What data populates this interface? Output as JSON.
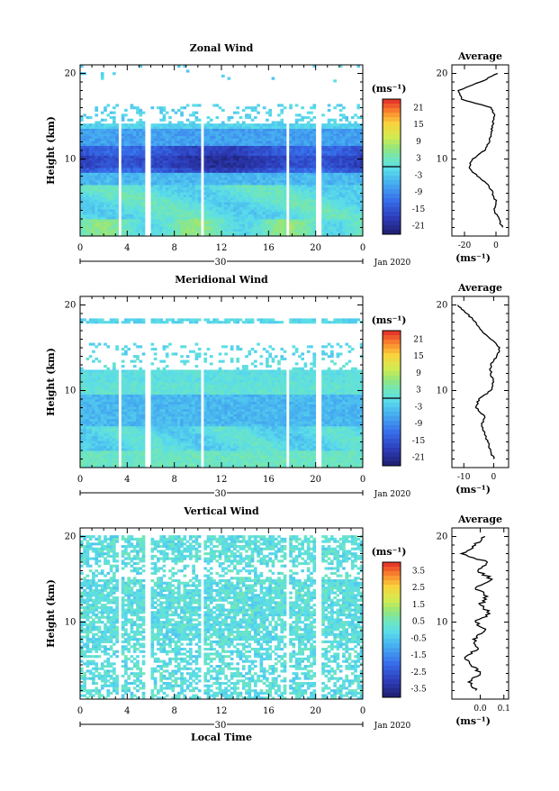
{
  "panels": [
    {
      "id": "zonal",
      "title": "Zonal Wind",
      "ylabel": "Height (km)",
      "yticks": [
        "20",
        "10"
      ],
      "xticks": [
        "0",
        "4",
        "8",
        "12",
        "16",
        "20",
        "0"
      ],
      "day_label": "30",
      "date_label": "Jan 2020",
      "unit_label": "(ms⁻¹)",
      "colorbar_ticks": [
        "21",
        "15",
        "9",
        "3",
        "-3",
        "-9",
        "-15",
        "-21"
      ],
      "colorbar_range": [
        -24,
        24
      ],
      "zero_marker": 0,
      "avg": {
        "title": "Average",
        "yticks": [
          "20",
          "10"
        ],
        "xticks": [
          "-20",
          "0"
        ],
        "xlim": [
          -28,
          8
        ],
        "unit": "(ms⁻¹)",
        "profile": [
          [
            2,
            4
          ],
          [
            3,
            2
          ],
          [
            4,
            -1
          ],
          [
            5,
            0
          ],
          [
            6,
            -2
          ],
          [
            7,
            -5
          ],
          [
            8,
            -12
          ],
          [
            9,
            -17
          ],
          [
            10,
            -15
          ],
          [
            11,
            -7
          ],
          [
            12,
            -4
          ],
          [
            13,
            -3
          ],
          [
            14,
            -2
          ],
          [
            15,
            -1
          ],
          [
            16,
            -3
          ],
          [
            17,
            -22
          ],
          [
            18,
            -24
          ],
          [
            19,
            -10
          ],
          [
            20,
            1
          ]
        ]
      }
    },
    {
      "id": "meridional",
      "title": "Meridional Wind",
      "ylabel": "Height (km)",
      "yticks": [
        "20",
        "10"
      ],
      "xticks": [
        "0",
        "4",
        "8",
        "12",
        "16",
        "20",
        "0"
      ],
      "day_label": "30",
      "date_label": "Jan 2020",
      "unit_label": "(ms⁻¹)",
      "colorbar_ticks": [
        "21",
        "15",
        "9",
        "3",
        "-3",
        "-9",
        "-15",
        "-21"
      ],
      "colorbar_range": [
        -24,
        24
      ],
      "zero_marker": 0,
      "avg": {
        "title": "Average",
        "yticks": [
          "20",
          "10"
        ],
        "xticks": [
          "-10",
          "0"
        ],
        "xlim": [
          -14,
          5
        ],
        "unit": "(ms⁻¹)",
        "profile": [
          [
            2,
            0
          ],
          [
            3,
            -1
          ],
          [
            4,
            -2
          ],
          [
            5,
            -3
          ],
          [
            6,
            -4
          ],
          [
            7,
            -3
          ],
          [
            8,
            -6
          ],
          [
            9,
            -5
          ],
          [
            10,
            -1
          ],
          [
            11,
            0
          ],
          [
            12,
            -1
          ],
          [
            13,
            -1
          ],
          [
            14,
            1
          ],
          [
            15,
            2
          ],
          [
            16,
            -1
          ],
          [
            17,
            -4
          ],
          [
            18,
            -6
          ],
          [
            19,
            -9
          ],
          [
            20,
            -12
          ]
        ]
      }
    },
    {
      "id": "vertical",
      "title": "Vertical Wind",
      "ylabel": "Height (km)",
      "yticks": [
        "20",
        "10"
      ],
      "xticks": [
        "0",
        "4",
        "8",
        "12",
        "16",
        "20",
        "0"
      ],
      "day_label": "30",
      "date_label": "Jan 2020",
      "xlabel": "Local Time",
      "unit_label": "(ms⁻¹)",
      "colorbar_ticks": [
        "3.5",
        "2.5",
        "1.5",
        "0.5",
        "-0.5",
        "-1.5",
        "-2.5",
        "-3.5"
      ],
      "colorbar_range": [
        -4,
        4
      ],
      "zero_marker": null,
      "avg": {
        "title": "Average",
        "yticks": [
          "20",
          "10"
        ],
        "xticks": [
          "0.0",
          "0.1"
        ],
        "xlim": [
          -0.12,
          0.12
        ],
        "unit": "(ms⁻¹)",
        "profile": [
          [
            2,
            -0.02
          ],
          [
            3,
            -0.05
          ],
          [
            4,
            0.0
          ],
          [
            5,
            -0.04
          ],
          [
            6,
            -0.06
          ],
          [
            7,
            -0.01
          ],
          [
            8,
            -0.03
          ],
          [
            9,
            0.02
          ],
          [
            10,
            -0.02
          ],
          [
            11,
            0.04
          ],
          [
            12,
            0.0
          ],
          [
            13,
            0.03
          ],
          [
            14,
            -0.02
          ],
          [
            15,
            0.05
          ],
          [
            16,
            -0.01
          ],
          [
            17,
            0.03
          ],
          [
            18,
            -0.08
          ],
          [
            19,
            -0.02
          ],
          [
            20,
            0.02
          ]
        ]
      }
    }
  ],
  "chart_data": [
    {
      "type": "heatmap",
      "title": "Zonal Wind",
      "ylabel": "Height (km)",
      "x_range_hours": [
        0,
        24
      ],
      "y_range_km": [
        1,
        21
      ],
      "value_range": [
        -24,
        24
      ],
      "unit": "ms⁻¹",
      "colorbar_ticks": [
        21,
        15,
        9,
        3,
        -3,
        -9,
        -15,
        -21
      ],
      "data_gaps_hours": [
        [
          3.2,
          3.6
        ],
        [
          5.6,
          5.9
        ],
        [
          10.2,
          10.6
        ],
        [
          17.4,
          17.7
        ],
        [
          20.1,
          20.4
        ]
      ]
    },
    {
      "type": "heatmap",
      "title": "Meridional Wind",
      "ylabel": "Height (km)",
      "x_range_hours": [
        0,
        24
      ],
      "y_range_km": [
        1,
        21
      ],
      "value_range": [
        -24,
        24
      ],
      "unit": "ms⁻¹",
      "colorbar_ticks": [
        21,
        15,
        9,
        3,
        -3,
        -9,
        -15,
        -21
      ],
      "data_gaps_hours": [
        [
          3.2,
          3.6
        ],
        [
          5.6,
          5.9
        ],
        [
          10.2,
          10.6
        ],
        [
          17.4,
          17.7
        ],
        [
          20.1,
          20.4
        ]
      ]
    },
    {
      "type": "heatmap",
      "title": "Vertical Wind",
      "ylabel": "Height (km)",
      "xlabel": "Local Time",
      "x_range_hours": [
        0,
        24
      ],
      "y_range_km": [
        1,
        21
      ],
      "value_range": [
        -4,
        4
      ],
      "unit": "ms⁻¹",
      "colorbar_ticks": [
        3.5,
        2.5,
        1.5,
        0.5,
        -0.5,
        -1.5,
        -2.5,
        -3.5
      ],
      "data_gaps_hours": [
        [
          3.2,
          3.6
        ],
        [
          5.6,
          5.9
        ],
        [
          10.2,
          10.6
        ],
        [
          17.4,
          17.7
        ],
        [
          20.1,
          20.4
        ]
      ]
    },
    {
      "type": "line",
      "title": "Average",
      "panel": "Zonal Wind",
      "x_label": "(ms⁻¹)",
      "x": [
        4,
        2,
        -1,
        0,
        -2,
        -5,
        -12,
        -17,
        -15,
        -7,
        -4,
        -3,
        -2,
        -1,
        -3,
        -22,
        -24,
        -10,
        1
      ],
      "y_km": [
        2,
        3,
        4,
        5,
        6,
        7,
        8,
        9,
        10,
        11,
        12,
        13,
        14,
        15,
        16,
        17,
        18,
        19,
        20
      ]
    },
    {
      "type": "line",
      "title": "Average",
      "panel": "Meridional Wind",
      "x_label": "(ms⁻¹)",
      "x": [
        0,
        -1,
        -2,
        -3,
        -4,
        -3,
        -6,
        -5,
        -1,
        0,
        -1,
        -1,
        1,
        2,
        -1,
        -4,
        -6,
        -9,
        -12
      ],
      "y_km": [
        2,
        3,
        4,
        5,
        6,
        7,
        8,
        9,
        10,
        11,
        12,
        13,
        14,
        15,
        16,
        17,
        18,
        19,
        20
      ]
    },
    {
      "type": "line",
      "title": "Average",
      "panel": "Vertical Wind",
      "x_label": "(ms⁻¹)",
      "x": [
        -0.02,
        -0.05,
        0.0,
        -0.04,
        -0.06,
        -0.01,
        -0.03,
        0.02,
        -0.02,
        0.04,
        0.0,
        0.03,
        -0.02,
        0.05,
        -0.01,
        0.03,
        -0.08,
        -0.02,
        0.02
      ],
      "y_km": [
        2,
        3,
        4,
        5,
        6,
        7,
        8,
        9,
        10,
        11,
        12,
        13,
        14,
        15,
        16,
        17,
        18,
        19,
        20
      ]
    }
  ]
}
